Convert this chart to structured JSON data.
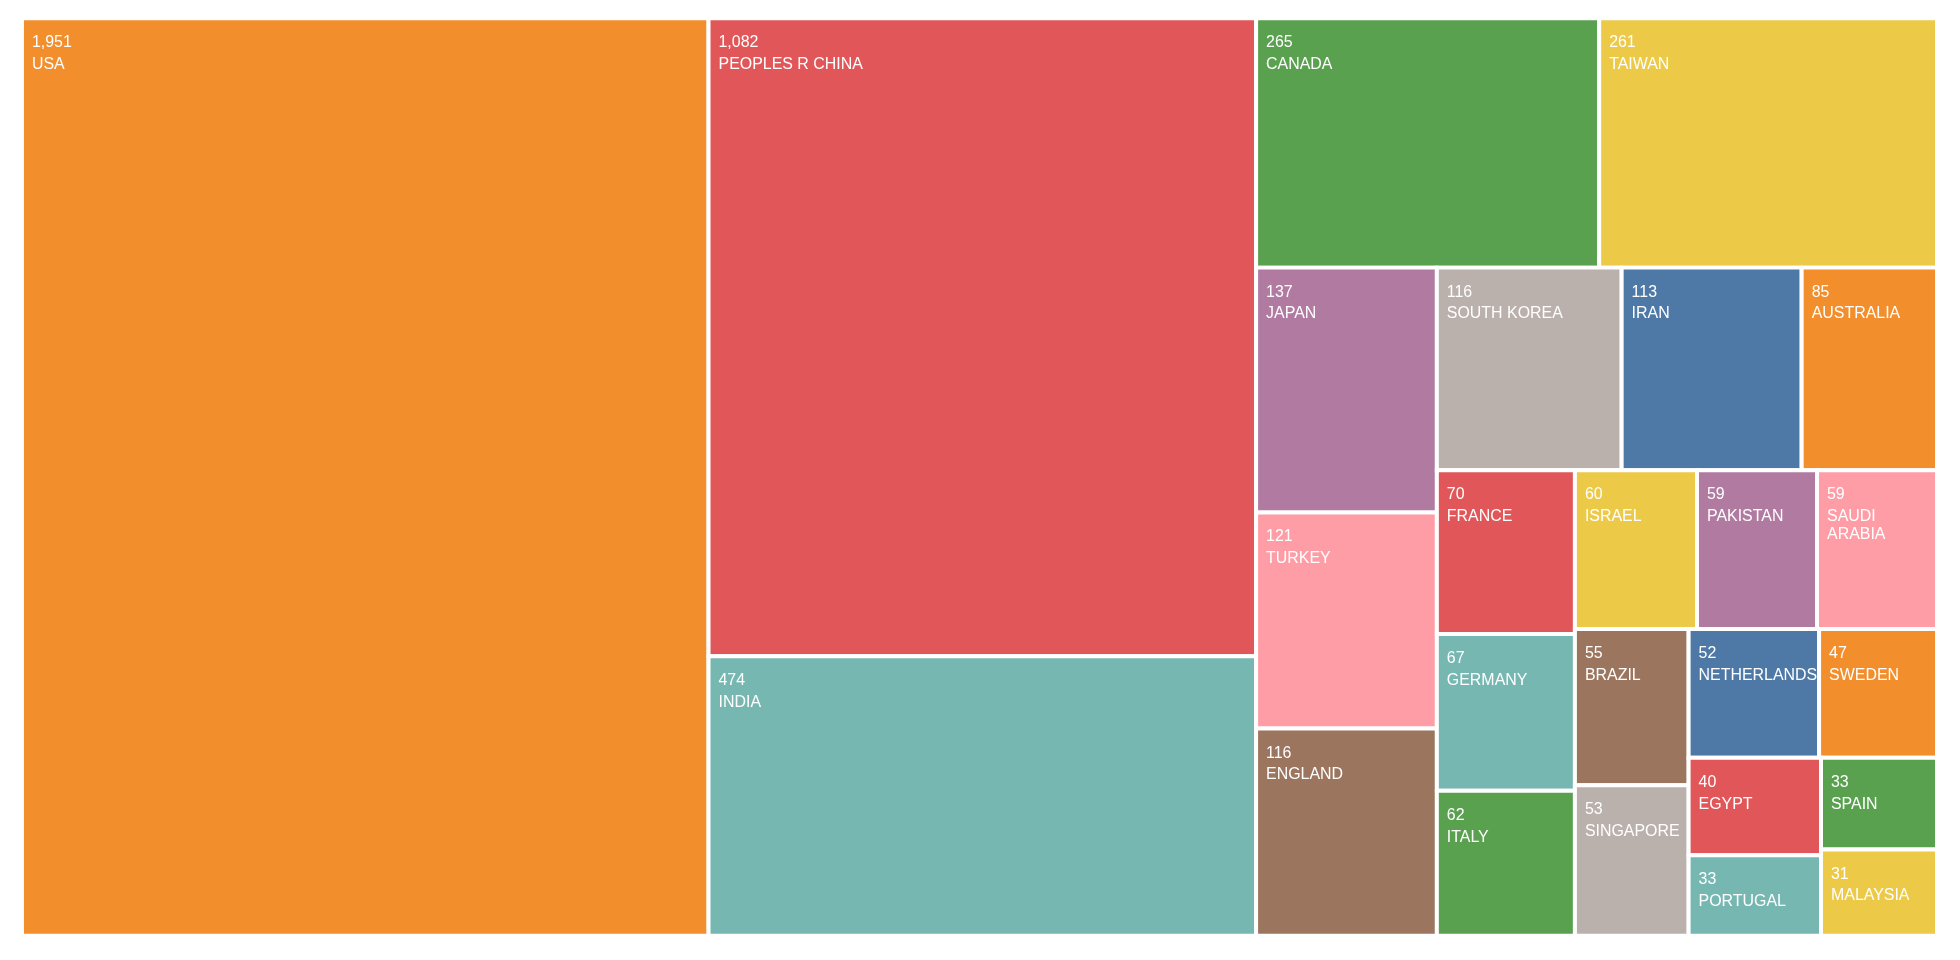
{
  "chart_data": {
    "type": "other",
    "categories": [
      "USA",
      "PEOPLES R CHINA",
      "INDIA",
      "CANADA",
      "TAIWAN",
      "JAPAN",
      "TURKEY",
      "ENGLAND",
      "SOUTH KOREA",
      "IRAN",
      "AUSTRALIA",
      "FRANCE",
      "GERMANY",
      "ITALY",
      "ISRAEL",
      "PAKISTAN",
      "SAUDI ARABIA",
      "BRAZIL",
      "SINGAPORE",
      "NETHERLANDS",
      "SWEDEN",
      "EGYPT",
      "PORTUGAL",
      "SPAIN",
      "MALAYSIA"
    ],
    "values": [
      1951,
      1082,
      474,
      265,
      261,
      137,
      121,
      116,
      116,
      113,
      85,
      70,
      67,
      62,
      60,
      59,
      59,
      55,
      53,
      52,
      47,
      40,
      33,
      33,
      31
    ],
    "colors": [
      "#f28e2b",
      "#e15759",
      "#76b7b2",
      "#59a14f",
      "#edc948",
      "#b07aa1",
      "#ff9da7",
      "#9c755f",
      "#bab0ac",
      "#4e79a7",
      "#f28e2b",
      "#e15759",
      "#76b7b2",
      "#59a14f",
      "#edc948",
      "#b07aa1",
      "#ff9da7",
      "#9c755f",
      "#bab0ac",
      "#4e79a7",
      "#f28e2b",
      "#e15759",
      "#76b7b2",
      "#59a14f",
      "#edc948"
    ],
    "value_labels": [
      "1,951",
      "1,082",
      "474",
      "265",
      "261",
      "137",
      "121",
      "116",
      "116",
      "113",
      "85",
      "70",
      "67",
      "62",
      "60",
      "59",
      "59",
      "55",
      "53",
      "52",
      "47",
      "40",
      "33",
      "33",
      "31"
    ]
  }
}
